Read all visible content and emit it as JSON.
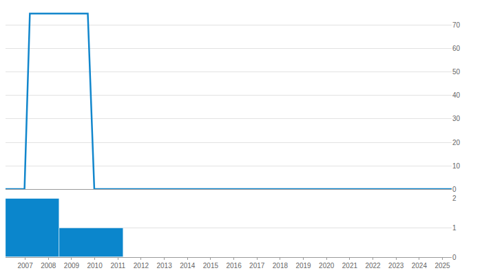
{
  "chart_data": [
    {
      "type": "line",
      "x": [
        2006.15,
        2006.97,
        2007.2,
        2009.7,
        2009.98,
        2025.4
      ],
      "values": [
        0,
        0,
        75,
        75,
        0,
        0
      ],
      "color": "#1186cc",
      "xlim": [
        2006.15,
        2025.4
      ],
      "xticks": [
        2007,
        2008,
        2009,
        2010,
        2011,
        2012,
        2013,
        2014,
        2015,
        2016,
        2017,
        2018,
        2019,
        2020,
        2021,
        2022,
        2023,
        2024,
        2025
      ],
      "ylim": [
        0,
        77
      ],
      "yticks": [
        0,
        10,
        20,
        30,
        40,
        50,
        60,
        70
      ],
      "grid": true,
      "tick_labels": "y"
    },
    {
      "type": "histogram",
      "bins": [
        2006.15,
        2008.47,
        2011.23
      ],
      "values": [
        2,
        1
      ],
      "color": "#0b86cc",
      "xlim": [
        2006.15,
        2025.4
      ],
      "xticks": [
        2007,
        2008,
        2009,
        2010,
        2011,
        2012,
        2013,
        2014,
        2015,
        2016,
        2017,
        2018,
        2019,
        2020,
        2021,
        2022,
        2023,
        2024,
        2025
      ],
      "ylim": [
        0,
        2
      ],
      "yticks": [
        0,
        1,
        2
      ],
      "grid": true
    }
  ]
}
